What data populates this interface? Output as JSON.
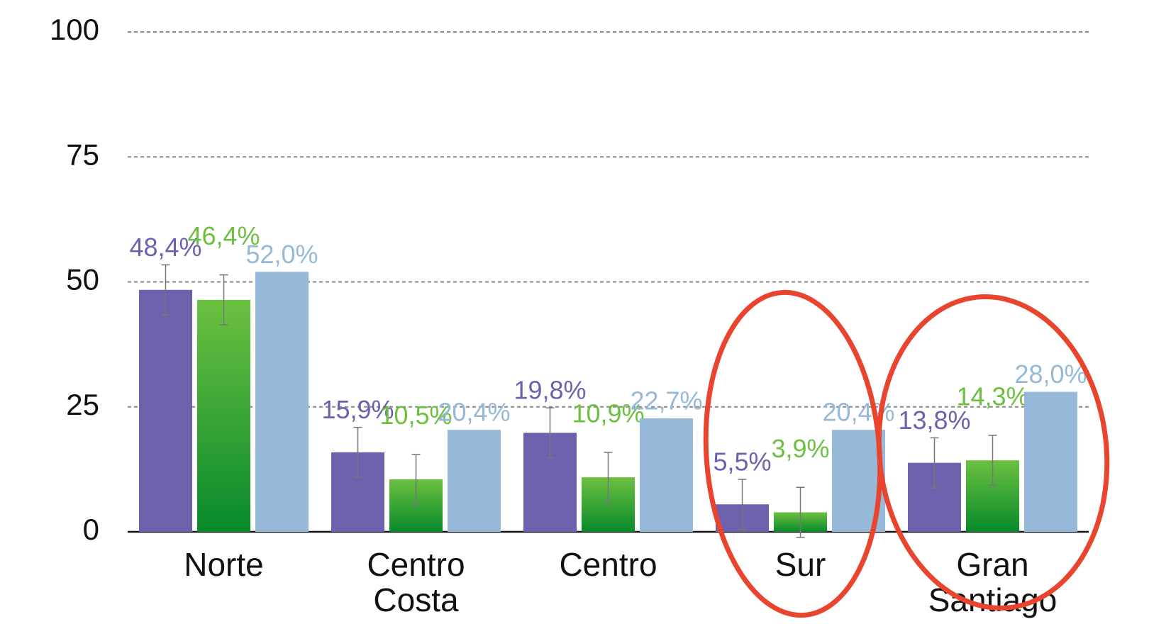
{
  "chart_data": {
    "type": "bar",
    "categories": [
      "Norte",
      "Centro Costa",
      "Centro",
      "Sur",
      "Gran Santiago"
    ],
    "series": [
      {
        "color": "#6d61ae",
        "values": [
          48.4,
          15.9,
          19.8,
          5.5,
          13.8
        ],
        "errors": [
          5,
          5,
          5,
          5,
          5
        ],
        "value_labels": [
          "48,4%",
          "15,9%",
          "19,8%",
          "5,5%",
          "13,8%"
        ]
      },
      {
        "color": "#6cc040",
        "gradient": "#078a2b",
        "values": [
          46.4,
          10.5,
          10.9,
          3.9,
          14.3
        ],
        "errors": [
          5,
          5,
          5,
          5,
          5
        ],
        "value_labels": [
          "46,4%",
          "10,5%",
          "10,9%",
          "3,9%",
          "14,3%"
        ]
      },
      {
        "color": "#96b9d9",
        "values": [
          52.0,
          20.4,
          22.7,
          20.4,
          28.0
        ],
        "value_labels": [
          "52,0%",
          "20,4%",
          "22,7%",
          "20,4%",
          "28,0%"
        ]
      }
    ],
    "ylim": [
      0,
      100
    ],
    "yticks": [
      0,
      25,
      50,
      75,
      100
    ],
    "grid": true
  }
}
